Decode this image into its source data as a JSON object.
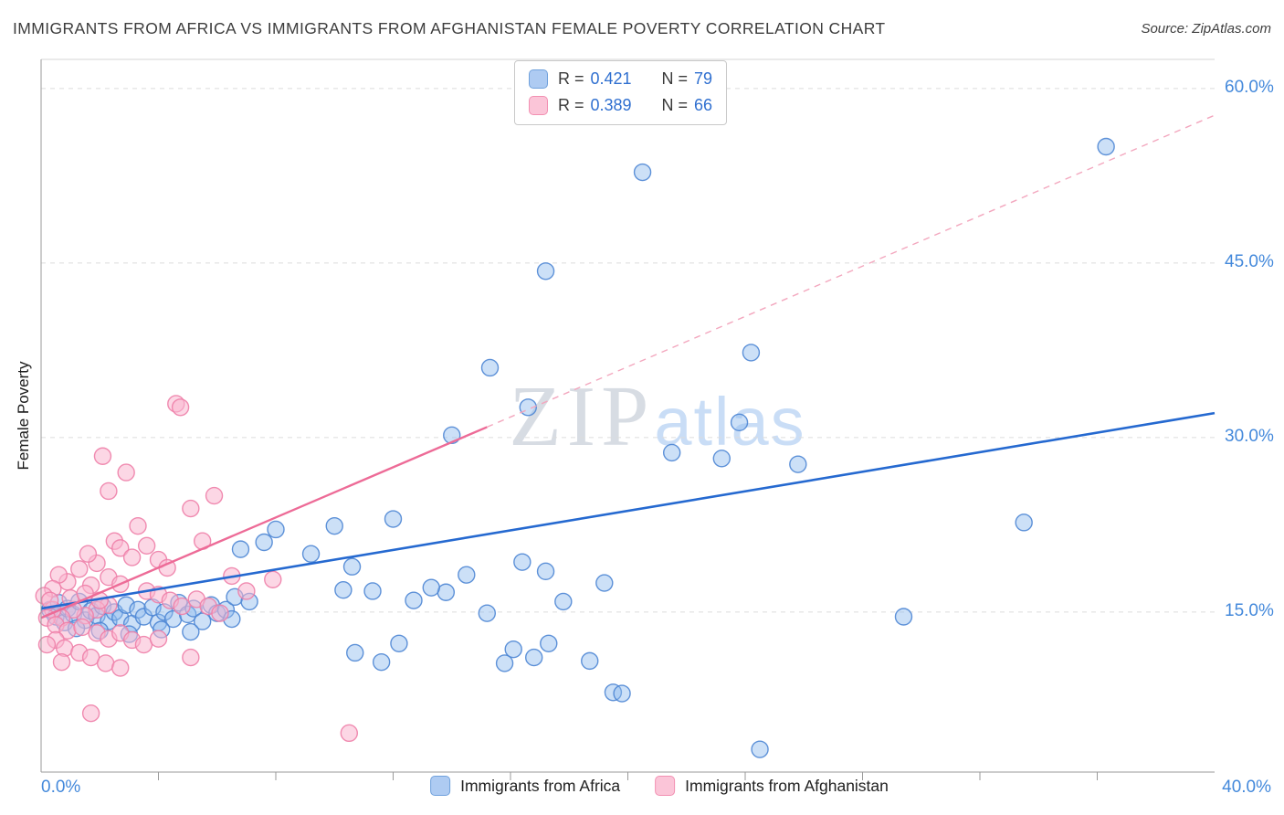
{
  "header": {
    "title": "IMMIGRANTS FROM AFRICA VS IMMIGRANTS FROM AFGHANISTAN FEMALE POVERTY CORRELATION CHART",
    "source": "Source: ZipAtlas.com"
  },
  "watermark": {
    "zip": "ZIP",
    "atlas": "atlas"
  },
  "axes": {
    "y_label": "Female Poverty",
    "y_ticks": [
      "60.0%",
      "45.0%",
      "30.0%",
      "15.0%"
    ],
    "x_min_label": "0.0%",
    "x_max_label": "40.0%"
  },
  "legend_box": {
    "rows": [
      {
        "r_label": "R =",
        "r": "0.421",
        "n_label": "N =",
        "n": "79"
      },
      {
        "r_label": "R =",
        "r": "0.389",
        "n_label": "N =",
        "n": "66"
      }
    ]
  },
  "bottom_legend": [
    {
      "label": "Immigrants from Africa"
    },
    {
      "label": "Immigrants from Afghanistan"
    }
  ],
  "chart_data": {
    "type": "scatter",
    "title": "IMMIGRANTS FROM AFRICA VS IMMIGRANTS FROM AFGHANISTAN FEMALE POVERTY CORRELATION CHART",
    "xlabel": "",
    "ylabel": "Female Poverty",
    "xlim": [
      0,
      40
    ],
    "ylim": [
      1.25,
      62.5
    ],
    "y_tick_values": [
      15,
      30,
      45,
      60
    ],
    "x_tick_step": 4,
    "grid": "horizontal-dashed",
    "legend_position": "top-center",
    "series": [
      {
        "name": "Immigrants from Africa",
        "R": 0.421,
        "N": 79,
        "fill": "#8FBAEE",
        "fill_opacity": 0.45,
        "stroke": "#4E86D4",
        "points": [
          [
            20.5,
            52.8
          ],
          [
            36.3,
            55.0
          ],
          [
            17.2,
            44.3
          ],
          [
            15.3,
            36.0
          ],
          [
            24.2,
            37.3
          ],
          [
            23.8,
            31.3
          ],
          [
            16.6,
            32.6
          ],
          [
            21.5,
            28.7
          ],
          [
            23.2,
            28.2
          ],
          [
            25.8,
            27.7
          ],
          [
            14.0,
            30.2
          ],
          [
            33.5,
            22.7
          ],
          [
            29.4,
            14.6
          ],
          [
            12.0,
            23.0
          ],
          [
            10.0,
            22.4
          ],
          [
            8.0,
            22.1
          ],
          [
            7.6,
            21.0
          ],
          [
            9.2,
            20.0
          ],
          [
            6.8,
            20.4
          ],
          [
            16.4,
            19.3
          ],
          [
            19.2,
            17.5
          ],
          [
            14.5,
            18.2
          ],
          [
            17.2,
            18.5
          ],
          [
            10.6,
            18.9
          ],
          [
            10.3,
            16.9
          ],
          [
            11.3,
            16.8
          ],
          [
            12.7,
            16.0
          ],
          [
            13.8,
            16.7
          ],
          [
            15.2,
            14.9
          ],
          [
            17.8,
            15.9
          ],
          [
            10.7,
            11.5
          ],
          [
            11.6,
            10.7
          ],
          [
            12.2,
            12.3
          ],
          [
            13.3,
            17.1
          ],
          [
            15.8,
            10.6
          ],
          [
            16.1,
            11.8
          ],
          [
            16.8,
            11.1
          ],
          [
            18.7,
            10.8
          ],
          [
            17.3,
            12.3
          ],
          [
            19.5,
            8.1
          ],
          [
            19.8,
            8.0
          ],
          [
            24.5,
            3.2
          ],
          [
            0.3,
            15.2
          ],
          [
            0.5,
            14.6
          ],
          [
            0.6,
            15.8
          ],
          [
            0.8,
            14.1
          ],
          [
            0.9,
            15.3
          ],
          [
            1.1,
            14.8
          ],
          [
            1.3,
            15.9
          ],
          [
            1.5,
            14.3
          ],
          [
            1.7,
            15.1
          ],
          [
            1.9,
            14.7
          ],
          [
            2.1,
            15.5
          ],
          [
            2.3,
            14.2
          ],
          [
            2.5,
            15.0
          ],
          [
            2.7,
            14.5
          ],
          [
            2.9,
            15.6
          ],
          [
            3.1,
            14.0
          ],
          [
            3.3,
            15.2
          ],
          [
            3.5,
            14.6
          ],
          [
            3.8,
            15.4
          ],
          [
            4.0,
            14.1
          ],
          [
            4.2,
            15.0
          ],
          [
            4.5,
            14.4
          ],
          [
            4.7,
            15.8
          ],
          [
            5.0,
            14.8
          ],
          [
            5.2,
            15.3
          ],
          [
            5.5,
            14.2
          ],
          [
            5.8,
            15.6
          ],
          [
            6.0,
            14.9
          ],
          [
            6.3,
            15.2
          ],
          [
            6.5,
            14.4
          ],
          [
            2.0,
            13.4
          ],
          [
            3.0,
            13.1
          ],
          [
            4.1,
            13.5
          ],
          [
            5.1,
            13.3
          ],
          [
            1.2,
            13.6
          ],
          [
            6.6,
            16.3
          ],
          [
            7.1,
            15.9
          ]
        ]
      },
      {
        "name": "Immigrants from Afghanistan",
        "R": 0.389,
        "N": 66,
        "fill": "#F9B7CF",
        "fill_opacity": 0.55,
        "stroke": "#EE7FA8",
        "points": [
          [
            4.6,
            32.9
          ],
          [
            4.75,
            32.6
          ],
          [
            2.1,
            28.4
          ],
          [
            2.9,
            27.0
          ],
          [
            2.3,
            25.4
          ],
          [
            5.1,
            23.9
          ],
          [
            5.9,
            25.0
          ],
          [
            3.3,
            22.4
          ],
          [
            2.5,
            21.1
          ],
          [
            2.7,
            20.5
          ],
          [
            3.1,
            19.7
          ],
          [
            3.6,
            20.7
          ],
          [
            4.0,
            19.5
          ],
          [
            4.3,
            18.8
          ],
          [
            1.9,
            19.2
          ],
          [
            1.6,
            20.0
          ],
          [
            1.3,
            18.7
          ],
          [
            2.3,
            18.0
          ],
          [
            2.7,
            17.4
          ],
          [
            1.7,
            17.3
          ],
          [
            0.9,
            17.6
          ],
          [
            0.6,
            18.2
          ],
          [
            0.4,
            17.0
          ],
          [
            0.1,
            16.4
          ],
          [
            6.5,
            18.1
          ],
          [
            7.9,
            17.8
          ],
          [
            3.6,
            16.8
          ],
          [
            4.0,
            16.5
          ],
          [
            4.4,
            16.0
          ],
          [
            4.8,
            15.5
          ],
          [
            5.3,
            16.1
          ],
          [
            5.7,
            15.5
          ],
          [
            6.1,
            14.9
          ],
          [
            2.3,
            15.6
          ],
          [
            1.9,
            15.2
          ],
          [
            1.5,
            14.7
          ],
          [
            1.1,
            15.2
          ],
          [
            0.7,
            14.5
          ],
          [
            0.4,
            15.2
          ],
          [
            0.2,
            14.5
          ],
          [
            0.5,
            13.9
          ],
          [
            0.9,
            13.4
          ],
          [
            1.4,
            13.7
          ],
          [
            1.9,
            13.2
          ],
          [
            2.3,
            12.7
          ],
          [
            2.7,
            13.2
          ],
          [
            3.1,
            12.6
          ],
          [
            3.5,
            12.2
          ],
          [
            4.0,
            12.7
          ],
          [
            0.5,
            12.6
          ],
          [
            0.2,
            12.2
          ],
          [
            0.8,
            11.9
          ],
          [
            1.3,
            11.5
          ],
          [
            1.7,
            11.1
          ],
          [
            2.2,
            10.6
          ],
          [
            2.7,
            10.2
          ],
          [
            0.7,
            10.7
          ],
          [
            5.1,
            11.1
          ],
          [
            1.7,
            6.3
          ],
          [
            10.5,
            4.6
          ],
          [
            5.5,
            21.1
          ],
          [
            7.0,
            16.8
          ],
          [
            0.3,
            16.0
          ],
          [
            1.0,
            16.2
          ],
          [
            1.5,
            16.6
          ],
          [
            2.0,
            16.0
          ]
        ]
      }
    ],
    "trend_lines": [
      {
        "series": "Immigrants from Africa",
        "style": "solid",
        "x1": 0,
        "y1": 15.3,
        "x2": 40,
        "y2": 32.1,
        "color": "#2569D0",
        "width": 2.6
      },
      {
        "series": "Immigrants from Afghanistan",
        "style": "solid",
        "x1": 0,
        "y1": 14.5,
        "x2": 15.2,
        "y2": 30.9,
        "color": "#ED6B97",
        "width": 2.4
      },
      {
        "series": "Immigrants from Afghanistan",
        "style": "dashed",
        "x1": 15.2,
        "y1": 30.9,
        "x2": 40,
        "y2": 57.7,
        "color": "#F3A7BE",
        "width": 1.4
      }
    ]
  }
}
